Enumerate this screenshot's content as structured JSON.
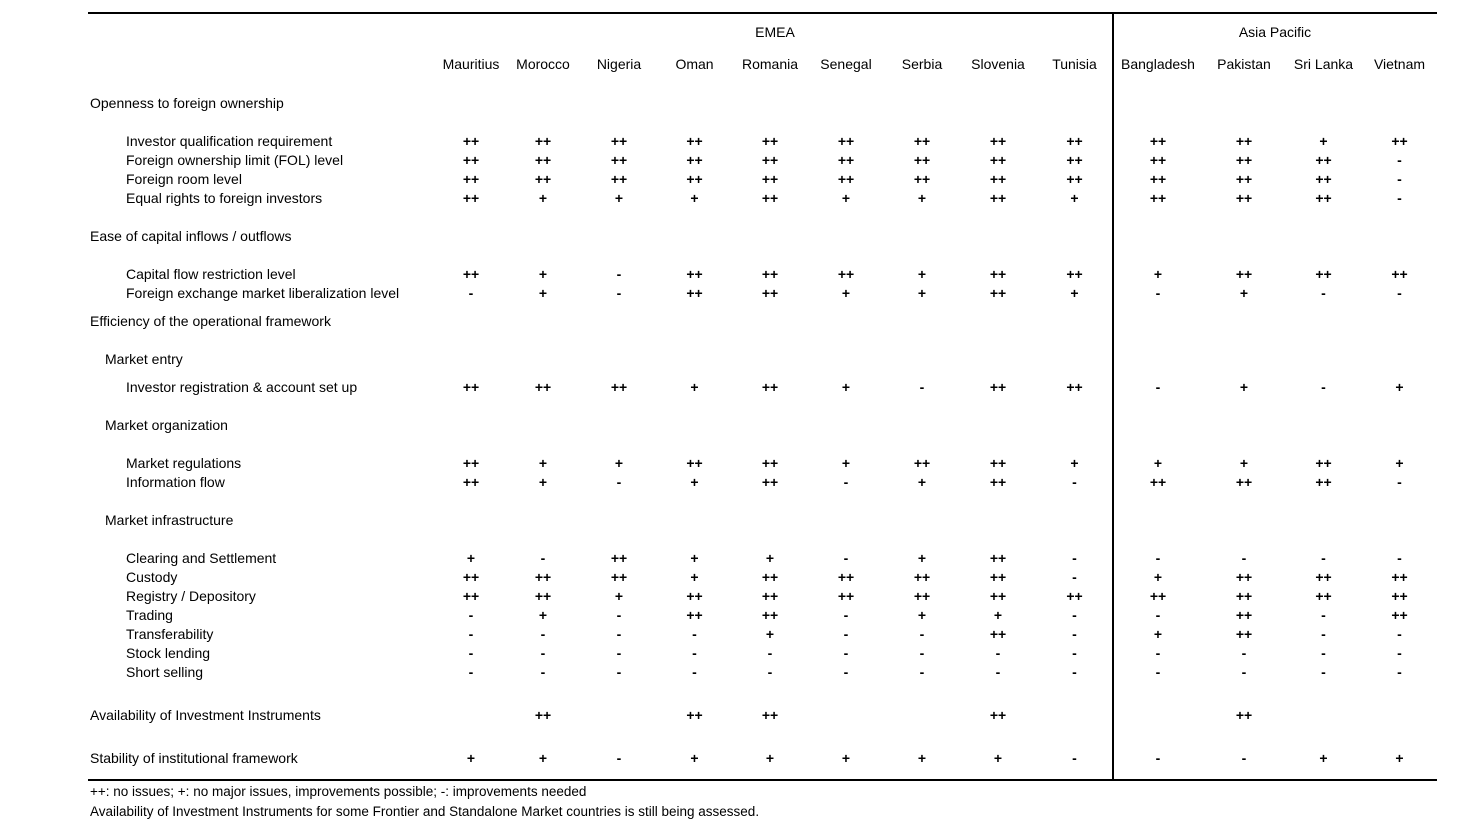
{
  "table": {
    "regions": [
      {
        "label": "EMEA",
        "countries": [
          "Mauritius",
          "Morocco",
          "Nigeria",
          "Oman",
          "Romania",
          "Senegal",
          "Serbia",
          "Slovenia",
          "Tunisia"
        ]
      },
      {
        "label": "Asia Pacific",
        "countries": [
          "Bangladesh",
          "Pakistan",
          "Sri Lanka",
          "Vietnam"
        ]
      }
    ],
    "rows": [
      {
        "type": "section",
        "label": "Openness to foreign ownership"
      },
      {
        "type": "spacer"
      },
      {
        "type": "item",
        "label": "Investor qualification requirement",
        "values": [
          "++",
          "++",
          "++",
          "++",
          "++",
          "++",
          "++",
          "++",
          "++",
          "++",
          "++",
          "+",
          "++"
        ]
      },
      {
        "type": "item",
        "label": "Foreign ownership limit (FOL) level",
        "values": [
          "++",
          "++",
          "++",
          "++",
          "++",
          "++",
          "++",
          "++",
          "++",
          "++",
          "++",
          "++",
          "-"
        ]
      },
      {
        "type": "item",
        "label": "Foreign room level",
        "values": [
          "++",
          "++",
          "++",
          "++",
          "++",
          "++",
          "++",
          "++",
          "++",
          "++",
          "++",
          "++",
          "-"
        ]
      },
      {
        "type": "item",
        "label": "Equal rights to foreign investors",
        "values": [
          "++",
          "+",
          "+",
          "+",
          "++",
          "+",
          "+",
          "++",
          "+",
          "++",
          "++",
          "++",
          "-"
        ]
      },
      {
        "type": "spacer"
      },
      {
        "type": "section",
        "label": "Ease of capital inflows / outflows"
      },
      {
        "type": "spacer"
      },
      {
        "type": "item",
        "label": "Capital flow restriction level",
        "values": [
          "++",
          "+",
          "-",
          "++",
          "++",
          "++",
          "+",
          "++",
          "++",
          "+",
          "++",
          "++",
          "++"
        ]
      },
      {
        "type": "item",
        "label": "Foreign exchange market liberalization level",
        "values": [
          "-",
          "+",
          "-",
          "++",
          "++",
          "+",
          "+",
          "++",
          "+",
          "-",
          "+",
          "-",
          "-"
        ]
      },
      {
        "type": "spacer",
        "size": "xs"
      },
      {
        "type": "section",
        "label": "Efficiency of the operational framework"
      },
      {
        "type": "spacer"
      },
      {
        "type": "subsection",
        "label": "Market entry"
      },
      {
        "type": "spacer",
        "size": "xs"
      },
      {
        "type": "item",
        "label": "Investor registration & account set up",
        "values": [
          "++",
          "++",
          "++",
          "+",
          "++",
          "+",
          "-",
          "++",
          "++",
          "-",
          "+",
          "-",
          "+"
        ]
      },
      {
        "type": "spacer"
      },
      {
        "type": "subsection",
        "label": "Market organization"
      },
      {
        "type": "spacer"
      },
      {
        "type": "item",
        "label": "Market regulations",
        "values": [
          "++",
          "+",
          "+",
          "++",
          "++",
          "+",
          "++",
          "++",
          "+",
          "+",
          "+",
          "++",
          "+"
        ]
      },
      {
        "type": "item",
        "label": "Information flow",
        "values": [
          "++",
          "+",
          "-",
          "+",
          "++",
          "-",
          "+",
          "++",
          "-",
          "++",
          "++",
          "++",
          "-"
        ]
      },
      {
        "type": "spacer"
      },
      {
        "type": "subsection",
        "label": "Market infrastructure"
      },
      {
        "type": "spacer"
      },
      {
        "type": "item",
        "label": "Clearing and Settlement",
        "values": [
          "+",
          "-",
          "++",
          "+",
          "+",
          "-",
          "+",
          "++",
          "-",
          "-",
          "-",
          "-",
          "-"
        ]
      },
      {
        "type": "item",
        "label": "Custody",
        "values": [
          "++",
          "++",
          "++",
          "+",
          "++",
          "++",
          "++",
          "++",
          "-",
          "+",
          "++",
          "++",
          "++"
        ]
      },
      {
        "type": "item",
        "label": "Registry / Depository",
        "values": [
          "++",
          "++",
          "+",
          "++",
          "++",
          "++",
          "++",
          "++",
          "++",
          "++",
          "++",
          "++",
          "++"
        ]
      },
      {
        "type": "item",
        "label": "Trading",
        "values": [
          "-",
          "+",
          "-",
          "++",
          "++",
          "-",
          "+",
          "+",
          "-",
          "-",
          "++",
          "-",
          "++"
        ]
      },
      {
        "type": "item",
        "label": "Transferability",
        "values": [
          "-",
          "-",
          "-",
          "-",
          "+",
          "-",
          "-",
          "++",
          "-",
          "+",
          "++",
          "-",
          "-"
        ]
      },
      {
        "type": "item",
        "label": "Stock lending",
        "values": [
          "-",
          "-",
          "-",
          "-",
          "-",
          "-",
          "-",
          "-",
          "-",
          "-",
          "-",
          "-",
          "-"
        ]
      },
      {
        "type": "item",
        "label": "Short selling",
        "values": [
          "-",
          "-",
          "-",
          "-",
          "-",
          "-",
          "-",
          "-",
          "-",
          "-",
          "-",
          "-",
          "-"
        ]
      },
      {
        "type": "spacer",
        "size": "lg"
      },
      {
        "type": "section",
        "label": "Availability of Investment Instruments",
        "values": [
          "",
          "++",
          "",
          "++",
          "++",
          "",
          "",
          "++",
          "",
          "",
          "++",
          "",
          ""
        ]
      },
      {
        "type": "spacer",
        "size": "lg"
      },
      {
        "type": "section",
        "label": "Stability of institutional framework",
        "values": [
          "+",
          "+",
          "-",
          "+",
          "+",
          "+",
          "+",
          "+",
          "-",
          "-",
          "-",
          "+",
          "+"
        ]
      }
    ]
  },
  "legend": {
    "symbols": "++: no issues; +: no major issues, improvements possible;  -: improvements needed",
    "note": "Availability of Investment Instruments for some Frontier and Standalone Market countries is still being assessed."
  }
}
